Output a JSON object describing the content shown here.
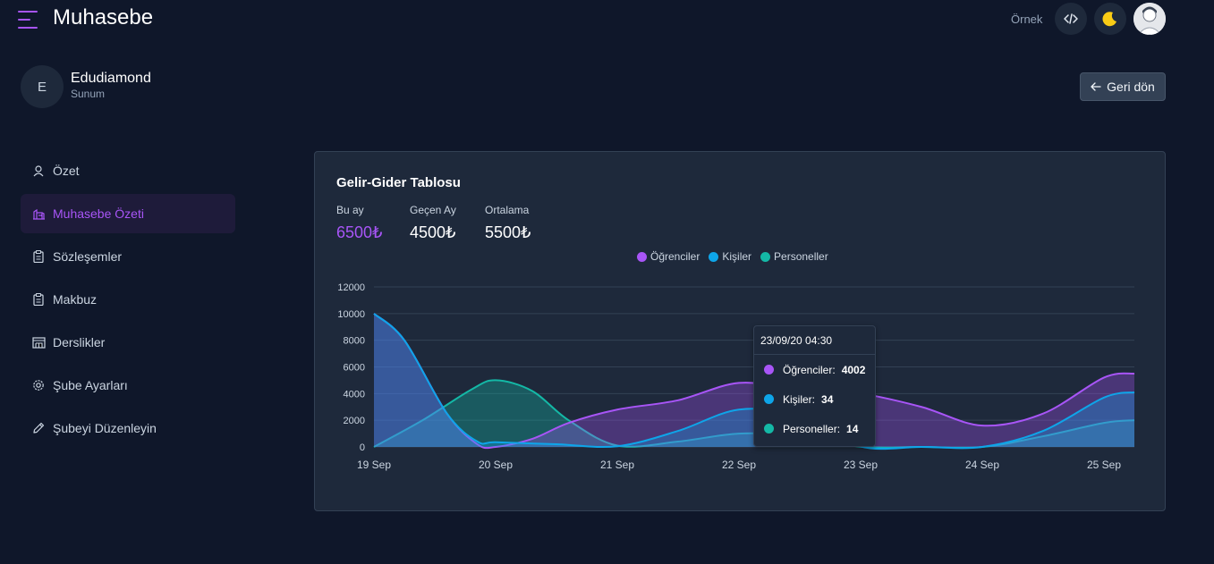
{
  "header": {
    "app_title": "Muhasebe",
    "ornek_label": "Örnek",
    "code_icon": "code-icon",
    "theme_icon": "moon-icon",
    "avatar_icon": "user-avatar"
  },
  "profile": {
    "initial": "E",
    "name": "Edudiamond",
    "subtitle": "Sunum"
  },
  "back_button": {
    "label": "Geri dön",
    "icon": "arrow-left-icon"
  },
  "sidebar": {
    "items": [
      {
        "label": "Özet",
        "icon": "user-icon",
        "active": false
      },
      {
        "label": "Muhasebe Özeti",
        "icon": "building-icon",
        "active": true
      },
      {
        "label": "Sözleşemler",
        "icon": "clipboard-icon",
        "active": false
      },
      {
        "label": "Makbuz",
        "icon": "clipboard-icon",
        "active": false
      },
      {
        "label": "Derslikler",
        "icon": "classroom-icon",
        "active": false
      },
      {
        "label": "Şube Ayarları",
        "icon": "gear-icon",
        "active": false
      },
      {
        "label": "Şubeyi Düzenleyin",
        "icon": "pencil-icon",
        "active": false
      }
    ]
  },
  "card": {
    "title": "Gelir-Gider Tablosu",
    "stats": [
      {
        "label": "Bu ay",
        "value": "6500₺",
        "color": "#a855f7"
      },
      {
        "label": "Geçen Ay",
        "value": "4500₺",
        "color": "#ffffff"
      },
      {
        "label": "Ortalama",
        "value": "5500₺",
        "color": "#ffffff"
      }
    ]
  },
  "colors": {
    "accent": "#a855f7",
    "ogrenciler": "#a855f7",
    "kisiler": "#0ea5e9",
    "personeller": "#14b8a6"
  },
  "chart_data": {
    "type": "area",
    "x": [
      "19 Sep",
      "20 Sep",
      "21 Sep",
      "22 Sep",
      "23 Sep",
      "24 Sep",
      "25 Sep"
    ],
    "ylim": [
      0,
      12000
    ],
    "yticks": [
      0,
      2000,
      4000,
      6000,
      8000,
      10000,
      12000
    ],
    "grid": true,
    "legend_position": "top-center",
    "series": [
      {
        "name": "Öğrenciler",
        "color": "#a855f7",
        "points": [
          [
            0,
            10000
          ],
          [
            0.25,
            8000
          ],
          [
            0.6,
            2500
          ],
          [
            0.85,
            200
          ],
          [
            1.0,
            0
          ],
          [
            1.3,
            600
          ],
          [
            1.6,
            1800
          ],
          [
            2.0,
            2800
          ],
          [
            2.5,
            3500
          ],
          [
            3.0,
            4800
          ],
          [
            3.5,
            4300
          ],
          [
            4.0,
            4002
          ],
          [
            4.5,
            3000
          ],
          [
            5.0,
            1600
          ],
          [
            5.5,
            2500
          ],
          [
            6.0,
            5200
          ],
          [
            6.25,
            5500
          ]
        ]
      },
      {
        "name": "Kişiler",
        "color": "#0ea5e9",
        "points": [
          [
            0,
            10000
          ],
          [
            0.25,
            8000
          ],
          [
            0.6,
            2500
          ],
          [
            0.85,
            400
          ],
          [
            1.0,
            350
          ],
          [
            1.5,
            200
          ],
          [
            2.0,
            50
          ],
          [
            2.5,
            1200
          ],
          [
            3.0,
            2800
          ],
          [
            3.5,
            2300
          ],
          [
            4.0,
            34
          ],
          [
            4.5,
            0
          ],
          [
            5.0,
            0
          ],
          [
            5.5,
            1200
          ],
          [
            6.0,
            3700
          ],
          [
            6.25,
            4100
          ]
        ]
      },
      {
        "name": "Personeller",
        "color": "#14b8a6",
        "points": [
          [
            0,
            0
          ],
          [
            0.4,
            2000
          ],
          [
            0.8,
            4300
          ],
          [
            1.0,
            5000
          ],
          [
            1.3,
            4200
          ],
          [
            1.6,
            2000
          ],
          [
            2.0,
            100
          ],
          [
            2.5,
            400
          ],
          [
            3.0,
            1000
          ],
          [
            3.5,
            800
          ],
          [
            4.0,
            14
          ],
          [
            4.5,
            0
          ],
          [
            5.0,
            0
          ],
          [
            5.5,
            800
          ],
          [
            6.0,
            1800
          ],
          [
            6.25,
            2000
          ]
        ]
      }
    ]
  },
  "tooltip": {
    "title": "23/09/20 04:30",
    "rows": [
      {
        "name": "Öğrenciler:",
        "value": "4002",
        "color": "#a855f7"
      },
      {
        "name": "Kişiler:",
        "value": "34",
        "color": "#0ea5e9"
      },
      {
        "name": "Personeller:",
        "value": "14",
        "color": "#14b8a6"
      }
    ]
  }
}
